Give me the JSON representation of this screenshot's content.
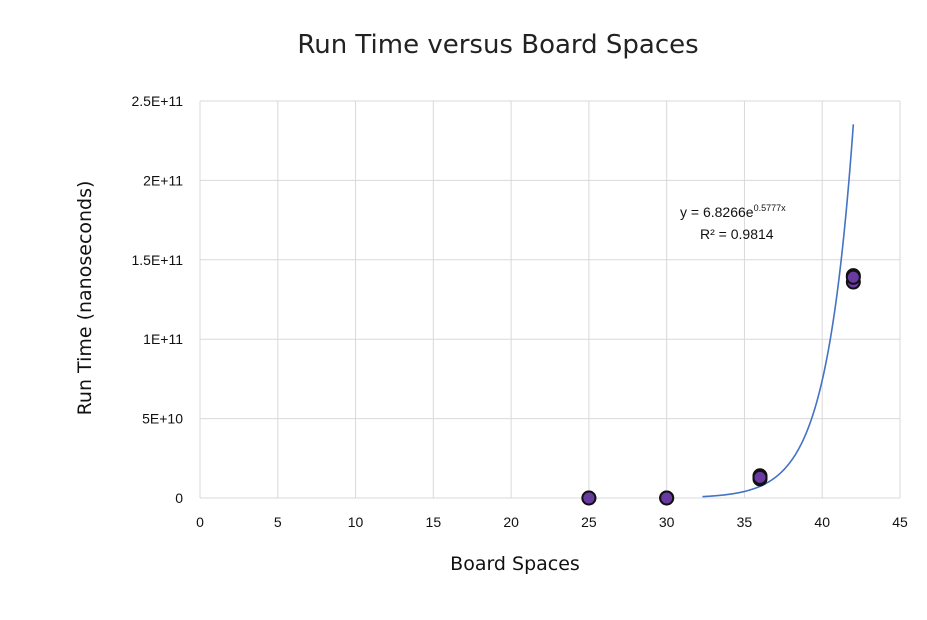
{
  "chart_data": {
    "type": "scatter",
    "title": "Run Time versus Board Spaces",
    "xlabel": "Board Spaces",
    "ylabel": "Run Time (nanoseconds)",
    "xlim": [
      0,
      45
    ],
    "ylim": [
      0,
      250000000000
    ],
    "x_ticks": [
      "0",
      "5",
      "10",
      "15",
      "20",
      "25",
      "30",
      "35",
      "40",
      "45"
    ],
    "x_tick_values": [
      0,
      5,
      10,
      15,
      20,
      25,
      30,
      35,
      40,
      45
    ],
    "y_ticks": [
      "0",
      "5E+10",
      "1E+11",
      "1.5E+11",
      "2E+11",
      "2.5E+11"
    ],
    "y_tick_values": [
      0,
      50000000000,
      100000000000,
      150000000000,
      200000000000,
      250000000000
    ],
    "grid": true,
    "points": [
      {
        "x": 25,
        "y": 100000
      },
      {
        "x": 25,
        "y": 150000
      },
      {
        "x": 30,
        "y": 15000000
      },
      {
        "x": 30,
        "y": 20000000
      },
      {
        "x": 36,
        "y": 12000000000
      },
      {
        "x": 36,
        "y": 14000000000
      },
      {
        "x": 36,
        "y": 13000000000
      },
      {
        "x": 42,
        "y": 136000000000
      },
      {
        "x": 42,
        "y": 140000000000
      },
      {
        "x": 42,
        "y": 139000000000
      }
    ],
    "trendline": {
      "type": "exponential",
      "a": 6.8266,
      "b": 0.5777,
      "x_range": [
        32.3,
        42
      ],
      "equation_prefix": "y = 6.8266e",
      "equation_exponent": "0.5777x",
      "r2_label": "R² = 0.9814"
    },
    "colors": {
      "point_fill": "#6a3aa3",
      "point_stroke": "#111111",
      "trendline": "#4472c4",
      "grid": "#d9d9d9"
    }
  }
}
